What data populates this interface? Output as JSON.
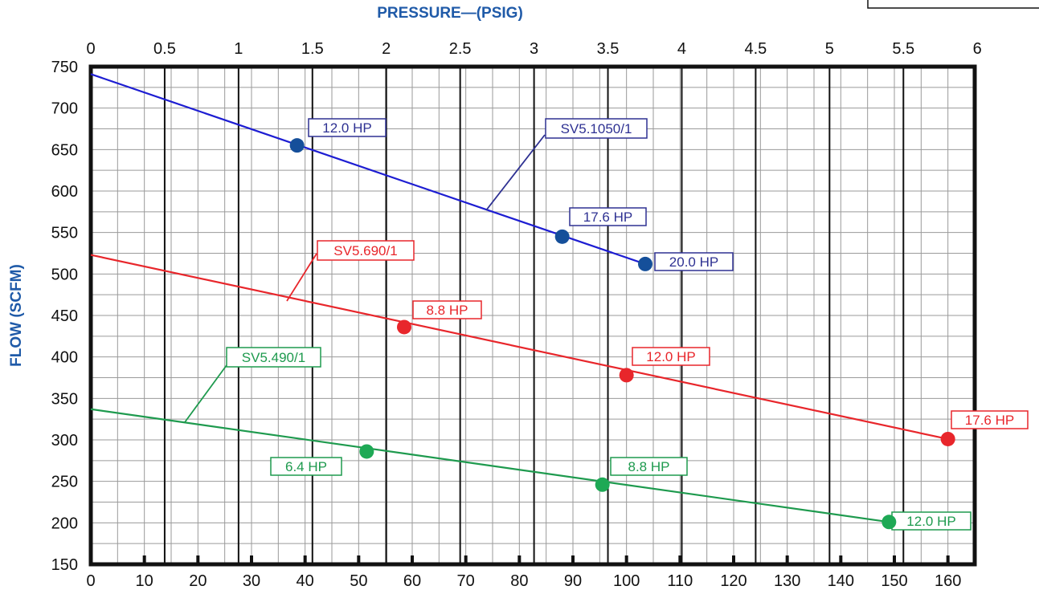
{
  "chart_data": {
    "type": "line",
    "title": "",
    "xlabel": "",
    "x2label": "PRESSURE—(PSIG)",
    "ylabel": "FLOW  (SCFM)",
    "xlim": [
      0,
      165
    ],
    "x_ticks": [
      "0",
      "10",
      "20",
      "30",
      "40",
      "50",
      "60",
      "70",
      "80",
      "90",
      "100",
      "110",
      "120",
      "130",
      "140",
      "150",
      "160"
    ],
    "x_tick_values": [
      0,
      10,
      20,
      30,
      40,
      50,
      60,
      70,
      80,
      90,
      100,
      110,
      120,
      130,
      140,
      150,
      160
    ],
    "x2_ticks": [
      "0",
      "0.5",
      "1",
      "1.5",
      "2",
      "2.5",
      "3",
      "3.5",
      "4",
      "4.5",
      "5",
      "5.5",
      "6"
    ],
    "x2_tick_values": [
      0,
      13.79,
      27.58,
      41.37,
      55.16,
      68.95,
      82.74,
      96.53,
      110.32,
      124.11,
      137.9,
      151.69,
      165.48
    ],
    "ylim": [
      150,
      750
    ],
    "y_ticks": [
      "150",
      "200",
      "250",
      "300",
      "350",
      "400",
      "450",
      "500",
      "550",
      "600",
      "650",
      "700",
      "750"
    ],
    "y_tick_values": [
      150,
      200,
      250,
      300,
      350,
      400,
      450,
      500,
      550,
      600,
      650,
      700,
      750
    ],
    "grid": true,
    "series": [
      {
        "name": "SV5.1050/1",
        "color": "#1d1dd2",
        "marker_color": "#154f9a",
        "label_color": "#2e3192",
        "line": [
          [
            0,
            741
          ],
          [
            103.5,
            512
          ]
        ],
        "points": [
          {
            "x": 38.5,
            "y": 655,
            "label": "12.0 HP"
          },
          {
            "x": 88,
            "y": 545,
            "label": "17.6 HP"
          },
          {
            "x": 103.5,
            "y": 512,
            "label": "20.0 HP"
          }
        ]
      },
      {
        "name": "SV5.690/1",
        "color": "#e8262b",
        "marker_color": "#e8262b",
        "label_color": "#e8262b",
        "line": [
          [
            0,
            523
          ],
          [
            160,
            301
          ]
        ],
        "points": [
          {
            "x": 58.5,
            "y": 436,
            "label": "8.8 HP"
          },
          {
            "x": 100,
            "y": 378,
            "label": "12.0 HP"
          },
          {
            "x": 160,
            "y": 301,
            "label": "17.6 HP"
          }
        ]
      },
      {
        "name": "SV5.490/1",
        "color": "#1e9a4e",
        "marker_color": "#1ea955",
        "label_color": "#1e9a4e",
        "line": [
          [
            0,
            337
          ],
          [
            149,
            201
          ]
        ],
        "points": [
          {
            "x": 51.5,
            "y": 286,
            "label": "6.4 HP"
          },
          {
            "x": 95.5,
            "y": 246,
            "label": "8.8 HP"
          },
          {
            "x": 149,
            "y": 201,
            "label": "12.0 HP"
          }
        ]
      }
    ]
  }
}
